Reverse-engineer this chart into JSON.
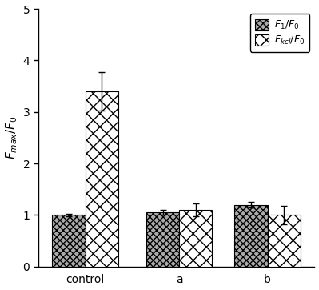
{
  "groups": [
    "control",
    "a",
    "b"
  ],
  "bar1_values": [
    1.0,
    1.05,
    1.2
  ],
  "bar2_values": [
    3.4,
    1.1,
    1.0
  ],
  "bar1_errors": [
    0.02,
    0.05,
    0.06
  ],
  "bar2_errors": [
    0.38,
    0.12,
    0.18
  ],
  "bar1_label": "$F_1/F_0$",
  "bar2_label": "$F_{kcl}/F_0$",
  "ylabel": "$F_{max}/F_0$",
  "ylim": [
    0,
    5
  ],
  "yticks": [
    0,
    1,
    2,
    3,
    4,
    5
  ],
  "bar_width": 0.28,
  "x_positions": [
    0.3,
    1.1,
    1.85
  ],
  "figsize": [
    3.99,
    3.62
  ],
  "dpi": 100
}
